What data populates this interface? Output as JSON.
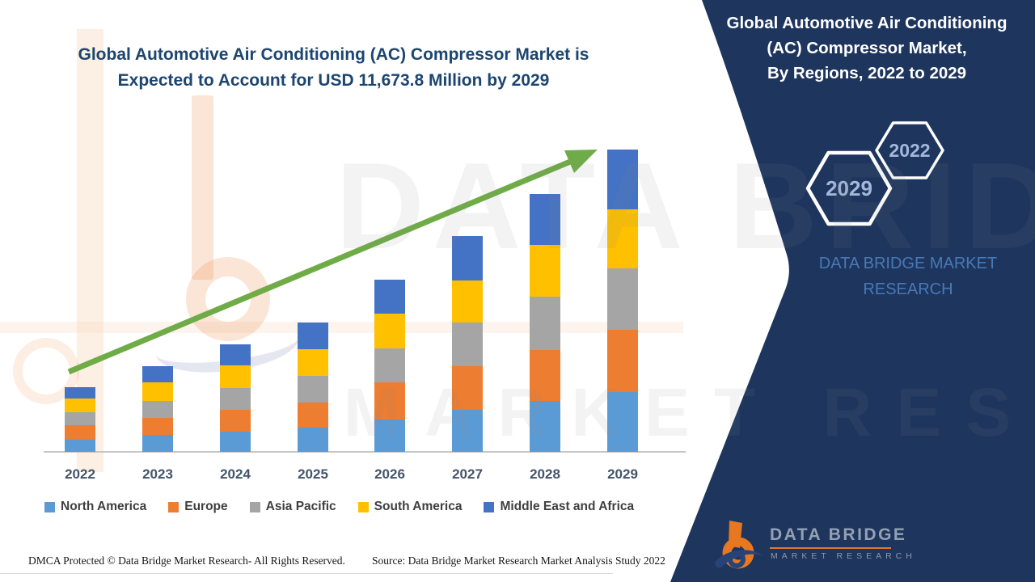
{
  "main_title": {
    "line1": "Global Automotive Air Conditioning (AC) Compressor Market is",
    "line2": "Expected to Account for USD 11,673.8 Million by 2029"
  },
  "side_panel": {
    "title_lines": {
      "l1": "Global Automotive Air Conditioning",
      "l2": "(AC) Compressor Market,",
      "l3": "By Regions, 2022 to 2029"
    },
    "hexagons": {
      "back_label": "2022",
      "front_label": "2029"
    },
    "brand_line1": "DATA BRIDGE MARKET",
    "brand_line2": "RESEARCH",
    "colors": {
      "panel": "#1E355E",
      "hexagon_outline": "#FFFFFF",
      "hexagon_text": "#A3B8DB",
      "brand_text": "#4879B6"
    }
  },
  "logo": {
    "name": "DATA BRIDGE",
    "subtitle": "MARKET RESEARCH"
  },
  "watermark": {
    "line1": "DATA BRIDGE",
    "line2": "MARKET RESEARCH"
  },
  "footer": {
    "left": "DMCA Protected © Data Bridge Market Research- All Rights Reserved.",
    "right": "Source: Data Bridge Market Research Market Analysis Study 2022"
  },
  "chart_data": {
    "type": "bar",
    "stacked": true,
    "title": "Global Automotive Air Conditioning (AC) Compressor Market is Expected to Account for USD 11,673.8 Million by 2029",
    "unit": "USD Million (values estimated from bar heights; 2029 total anchored to 11,673.8)",
    "categories": [
      "2022",
      "2023",
      "2024",
      "2025",
      "2026",
      "2027",
      "2028",
      "2029"
    ],
    "series": [
      {
        "name": "North America",
        "color": "#5B9BD5",
        "values": [
          468,
          655,
          780,
          936,
          1248,
          1623,
          1966,
          2310
        ]
      },
      {
        "name": "Europe",
        "color": "#ED7D31",
        "values": [
          562,
          655,
          843,
          968,
          1436,
          1685,
          1966,
          2403
        ]
      },
      {
        "name": "Asia Pacific",
        "color": "#A5A5A5",
        "values": [
          499,
          655,
          843,
          1030,
          1311,
          1685,
          2060,
          2372
        ]
      },
      {
        "name": "South America",
        "color": "#FFC000",
        "values": [
          531,
          718,
          874,
          1030,
          1342,
          1623,
          1997,
          2278
        ]
      },
      {
        "name": "Middle East and Africa",
        "color": "#4472C4",
        "values": [
          437,
          624,
          811,
          1030,
          1311,
          1717,
          1966,
          2310
        ]
      }
    ],
    "totals": [
      2497,
      3307,
      4151,
      4994,
      6648,
      8333,
      9955,
      11673
    ],
    "highlight_total_2029": "11,673.8",
    "ylim": [
      0,
      12000
    ],
    "axes_labeled": false,
    "gridlines": false,
    "legend_position": "bottom",
    "annotations": [
      "upward green trend arrow across bars"
    ],
    "trend_arrow_color": "#6FAC47"
  }
}
